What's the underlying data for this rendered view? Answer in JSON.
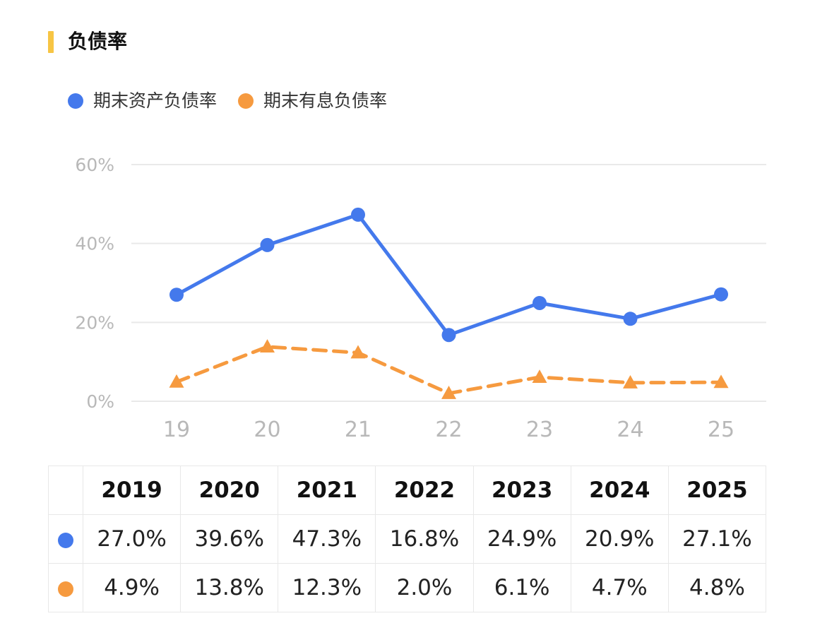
{
  "title": "负债率",
  "colors": {
    "accent_bar": "#f7c544",
    "series_blue": "#4479ec",
    "series_orange": "#f69a3f",
    "grid": "#e9e9e9",
    "axis_text": "#b8b8b8"
  },
  "chart_data": {
    "type": "line",
    "x": [
      "19",
      "20",
      "21",
      "22",
      "23",
      "24",
      "25"
    ],
    "y_ticks": [
      "60%",
      "40%",
      "20%",
      "0%"
    ],
    "ylim": [
      0,
      60
    ],
    "grid": true,
    "legend_position": "top-left",
    "series": [
      {
        "name": "期末资产负债率",
        "color": "#4479ec",
        "marker": "circle",
        "line_style": "solid",
        "values": [
          27.0,
          39.6,
          47.3,
          16.8,
          24.9,
          20.9,
          27.1
        ]
      },
      {
        "name": "期末有息负债率",
        "color": "#f69a3f",
        "marker": "triangle",
        "line_style": "dashed",
        "values": [
          4.9,
          13.8,
          12.3,
          2.0,
          6.1,
          4.7,
          4.8
        ]
      }
    ]
  },
  "table": {
    "headers": [
      "2019",
      "2020",
      "2021",
      "2022",
      "2023",
      "2024",
      "2025"
    ],
    "rows": [
      {
        "color": "#4479ec",
        "cells": [
          "27.0%",
          "39.6%",
          "47.3%",
          "16.8%",
          "24.9%",
          "20.9%",
          "27.1%"
        ]
      },
      {
        "color": "#f69a3f",
        "cells": [
          "4.9%",
          "13.8%",
          "12.3%",
          "2.0%",
          "6.1%",
          "4.7%",
          "4.8%"
        ]
      }
    ]
  }
}
